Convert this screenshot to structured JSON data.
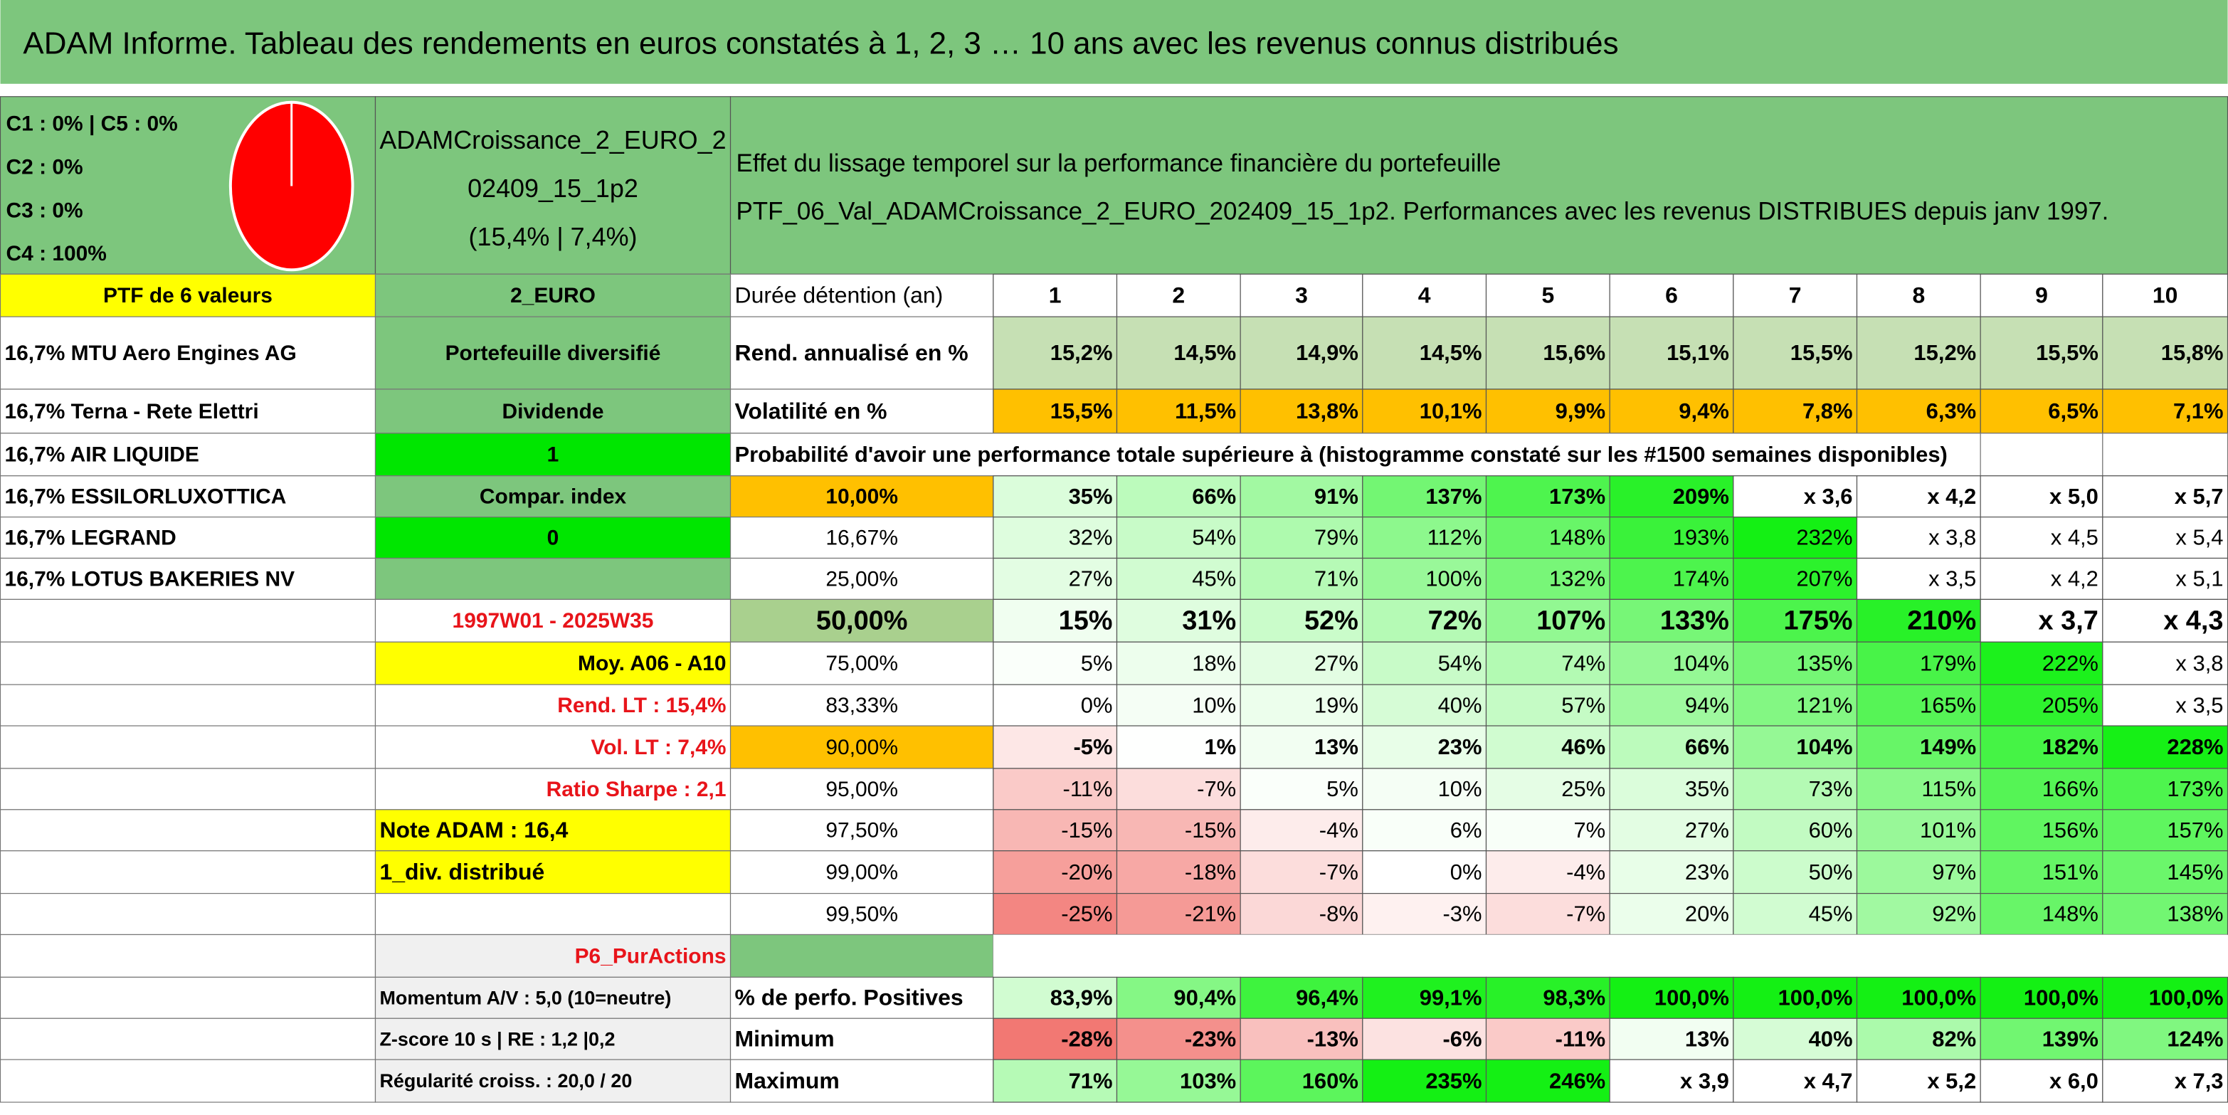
{
  "header": {
    "title": "ADAM Informe. Tableau des rendements en euros constatés à 1, 2, 3 … 10 ans avec les revenus connus distribués"
  },
  "summary": {
    "allocation": [
      "C1 : 0% | C5 : 0%",
      "C2 : 0%",
      "C3 : 0%",
      "C4 : 100%"
    ],
    "portfolio_name": [
      "ADAMCroissance_2_EURO_2",
      "02409_15_1p2",
      "(15,4% | 7,4%)"
    ],
    "description": [
      "Effet du lissage temporel sur la performance financière du portefeuille",
      "PTF_06_Val_ADAMCroissance_2_EURO_202409_15_1p2. Performances avec les revenus DISTRIBUES depuis janv 1997."
    ]
  },
  "table": {
    "rows": [
      {
        "a": "PTF de 6 valeurs",
        "b": "2_EURO",
        "label": "Durée détention (an)",
        "cells": [
          1,
          2,
          3,
          4,
          5,
          6,
          7,
          8,
          9,
          10
        ]
      },
      {
        "a": "16,7% MTU Aero Engines AG",
        "b": "Portefeuille diversifié",
        "label": "Rend. annualisé en %",
        "cells": [
          "15,2%",
          "14,5%",
          "14,9%",
          "14,5%",
          "15,6%",
          "15,1%",
          "15,5%",
          "15,2%",
          "15,5%",
          "15,8%"
        ]
      },
      {
        "a": "16,7% Terna - Rete Elettri",
        "b": "Dividende",
        "label": "Volatilité en %",
        "cells": [
          "15,5%",
          "11,5%",
          "13,8%",
          "10,1%",
          "9,9%",
          "9,4%",
          "7,8%",
          "6,3%",
          "6,5%",
          "7,1%"
        ]
      },
      {
        "a": "16,7% AIR LIQUIDE",
        "b": "1",
        "label": "Probabilité d'avoir une performance totale supérieure à (histogramme constaté sur les #1500 semaines disponibles)"
      },
      {
        "a": "16,7% ESSILORLUXOTTICA",
        "b": "Compar. index",
        "label": "10,00%",
        "cells": [
          "35%",
          "66%",
          "91%",
          "137%",
          "173%",
          "209%",
          "x 3,6",
          "x 4,2",
          "x 5,0",
          "x 5,7"
        ]
      },
      {
        "a": "16,7% LEGRAND",
        "b": "0",
        "label": "16,67%",
        "cells": [
          "32%",
          "54%",
          "79%",
          "112%",
          "148%",
          "193%",
          "232%",
          "x 3,8",
          "x 4,5",
          "x 5,4"
        ]
      },
      {
        "a": "16,7% LOTUS BAKERIES NV",
        "label": "25,00%",
        "cells": [
          "27%",
          "45%",
          "71%",
          "100%",
          "132%",
          "174%",
          "207%",
          "x 3,5",
          "x 4,2",
          "x 5,1"
        ]
      },
      {
        "b": "1997W01 - 2025W35",
        "label": "50,00%",
        "cells": [
          "15%",
          "31%",
          "52%",
          "72%",
          "107%",
          "133%",
          "175%",
          "210%",
          "x 3,7",
          "x 4,3"
        ]
      },
      {
        "b": "Moy. A06 - A10",
        "label": "75,00%",
        "cells": [
          "5%",
          "18%",
          "27%",
          "54%",
          "74%",
          "104%",
          "135%",
          "179%",
          "222%",
          "x 3,8"
        ]
      },
      {
        "b": "Rend. LT : 15,4%",
        "label": "83,33%",
        "cells": [
          "0%",
          "10%",
          "19%",
          "40%",
          "57%",
          "94%",
          "121%",
          "165%",
          "205%",
          "x 3,5"
        ]
      },
      {
        "b": "Vol. LT : 7,4%",
        "label": "90,00%",
        "cells": [
          "-5%",
          "1%",
          "13%",
          "23%",
          "46%",
          "66%",
          "104%",
          "149%",
          "182%",
          "228%"
        ]
      },
      {
        "b": "Ratio Sharpe : 2,1",
        "label": "95,00%",
        "cells": [
          "-11%",
          "-7%",
          "5%",
          "10%",
          "25%",
          "35%",
          "73%",
          "115%",
          "166%",
          "173%"
        ]
      },
      {
        "b": "Note ADAM : 16,4",
        "label": "97,50%",
        "cells": [
          "-15%",
          "-15%",
          "-4%",
          "6%",
          "7%",
          "27%",
          "60%",
          "101%",
          "156%",
          "157%"
        ]
      },
      {
        "b": "1_div. distribué",
        "label": "99,00%",
        "cells": [
          "-20%",
          "-18%",
          "-7%",
          "0%",
          "-4%",
          "23%",
          "50%",
          "97%",
          "151%",
          "145%"
        ]
      },
      {
        "label": "99,50%",
        "cells": [
          "-25%",
          "-21%",
          "-8%",
          "-3%",
          "-7%",
          "20%",
          "45%",
          "92%",
          "148%",
          "138%"
        ]
      },
      {
        "b": "P6_PurActions"
      },
      {
        "b": "Momentum A/V : 5,0 (10=neutre)",
        "label": "% de perfo. Positives",
        "cells": [
          "83,9%",
          "90,4%",
          "96,4%",
          "99,1%",
          "98,3%",
          "100,0%",
          "100,0%",
          "100,0%",
          "100,0%",
          "100,0%"
        ]
      },
      {
        "b": "Z-score 10 s | RE : 1,2 |0,2",
        "label": "Minimum",
        "cells": [
          "-28%",
          "-23%",
          "-13%",
          "-6%",
          "-11%",
          "13%",
          "40%",
          "82%",
          "139%",
          "124%"
        ]
      },
      {
        "b": "Régularité croiss. : 20,0 / 20",
        "label": "Maximum",
        "cells": [
          "71%",
          "103%",
          "160%",
          "235%",
          "246%",
          "x 3,9",
          "x 4,7",
          "x 5,2",
          "x 6,0",
          "x 7,3"
        ]
      }
    ]
  }
}
